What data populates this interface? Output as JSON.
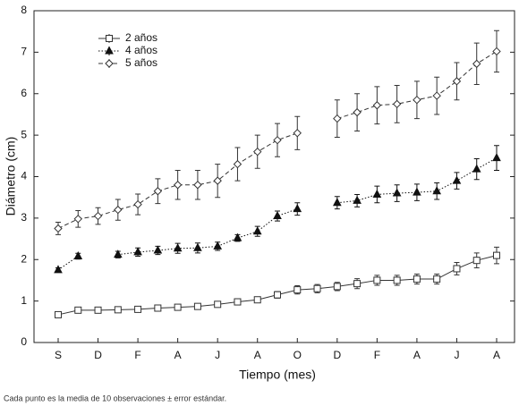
{
  "chart_data": {
    "type": "line",
    "xlabel": "Tiempo (mes)",
    "ylabel": "Diámetro (cm)",
    "caption": "Cada punto es la media de 10 observaciones ± error estándar.",
    "categories": [
      "S",
      null,
      "D",
      null,
      "F",
      null,
      "A",
      null,
      "J",
      null,
      "A",
      null,
      "O",
      null,
      "D",
      null,
      "F",
      null,
      "A",
      null,
      "J",
      null,
      "A"
    ],
    "ylim": [
      0,
      8
    ],
    "yticks": [
      0,
      1,
      2,
      3,
      4,
      5,
      6,
      7,
      8
    ],
    "legend": "upper left",
    "series": [
      {
        "name": "2 años",
        "color": "#333333",
        "marker": "square",
        "line_style": "solid",
        "values": [
          0.67,
          0.78,
          0.78,
          0.79,
          0.8,
          0.83,
          0.85,
          0.87,
          0.92,
          0.98,
          1.03,
          1.15,
          1.27,
          1.3,
          1.35,
          1.42,
          1.5,
          1.5,
          1.53,
          1.53,
          1.78,
          1.98,
          2.1
        ],
        "errors": [
          0.03,
          0.03,
          0.03,
          0.03,
          0.04,
          0.04,
          0.05,
          0.05,
          0.06,
          0.07,
          0.07,
          0.08,
          0.1,
          0.1,
          0.1,
          0.12,
          0.12,
          0.12,
          0.12,
          0.12,
          0.15,
          0.18,
          0.2
        ]
      },
      {
        "name": "4 años",
        "color": "#111111",
        "marker": "triangle",
        "line_style": "dotted",
        "values": [
          1.75,
          2.08,
          null,
          2.12,
          2.18,
          2.22,
          2.27,
          2.28,
          2.32,
          2.52,
          2.68,
          3.05,
          3.22,
          null,
          3.37,
          3.42,
          3.57,
          3.6,
          3.62,
          3.65,
          3.9,
          4.18,
          4.45
        ],
        "errors": [
          0.05,
          0.07,
          null,
          0.08,
          0.1,
          0.1,
          0.12,
          0.12,
          0.1,
          0.08,
          0.12,
          0.12,
          0.15,
          null,
          0.15,
          0.15,
          0.2,
          0.2,
          0.2,
          0.2,
          0.2,
          0.25,
          0.3
        ]
      },
      {
        "name": "5 años",
        "color": "#333333",
        "marker": "diamond",
        "line_style": "dashed",
        "values": [
          2.75,
          2.98,
          3.05,
          3.2,
          3.33,
          3.65,
          3.8,
          3.8,
          3.9,
          4.3,
          4.6,
          4.88,
          5.05,
          null,
          5.4,
          5.55,
          5.72,
          5.75,
          5.85,
          5.95,
          6.3,
          6.72,
          7.02
        ],
        "errors": [
          0.15,
          0.2,
          0.2,
          0.25,
          0.25,
          0.3,
          0.35,
          0.35,
          0.4,
          0.4,
          0.4,
          0.4,
          0.4,
          null,
          0.45,
          0.45,
          0.45,
          0.45,
          0.45,
          0.45,
          0.45,
          0.5,
          0.5
        ]
      }
    ]
  }
}
